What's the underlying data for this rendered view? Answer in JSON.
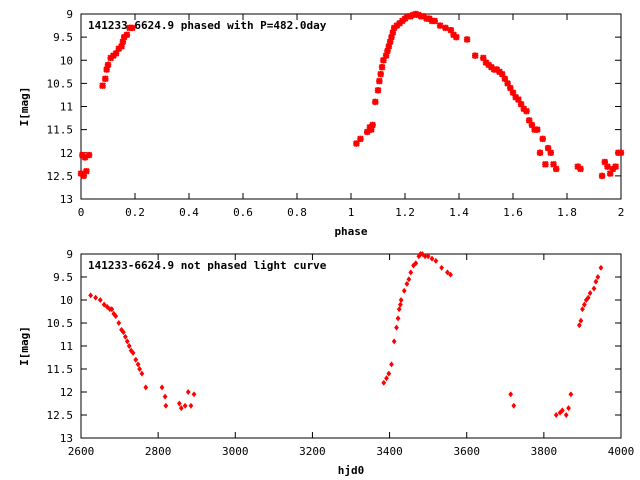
{
  "chart_data": [
    {
      "type": "scatter",
      "title": "141233-6624.9 phased with P=482.0day",
      "xlabel": "phase",
      "ylabel": "I[mag]",
      "xlim": [
        0,
        2
      ],
      "ylim": [
        13,
        9
      ],
      "y_inverted": true,
      "x_ticks": [
        "0",
        "0.2",
        "0.4",
        "0.6",
        "0.8",
        "1",
        "1.2",
        "1.4",
        "1.6",
        "1.8",
        "2"
      ],
      "x_tick_values": [
        0,
        0.2,
        0.4,
        0.6,
        0.8,
        1.0,
        1.2,
        1.4,
        1.6,
        1.8,
        2.0
      ],
      "y_ticks": [
        "9",
        "9.5",
        "10",
        "10.5",
        "11",
        "11.5",
        "12",
        "12.5",
        "13"
      ],
      "y_tick_values": [
        9,
        9.5,
        10,
        10.5,
        11,
        11.5,
        12,
        12.5,
        13
      ],
      "grid": false,
      "marker": "cross",
      "series": [
        {
          "color": "#ff0000",
          "x": [
            0.0,
            0.005,
            0.01,
            0.015,
            0.02,
            0.03,
            0.08,
            0.09,
            0.095,
            0.1,
            0.11,
            0.12,
            0.13,
            0.14,
            0.15,
            0.155,
            0.16,
            0.17,
            0.18,
            0.19,
            1.02,
            1.035,
            1.06,
            1.07,
            1.075,
            1.08,
            1.09,
            1.1,
            1.105,
            1.11,
            1.115,
            1.12,
            1.13,
            1.135,
            1.14,
            1.145,
            1.15,
            1.155,
            1.16,
            1.17,
            1.18,
            1.19,
            1.2,
            1.21,
            1.22,
            1.23,
            1.24,
            1.25,
            1.26,
            1.27,
            1.28,
            1.29,
            1.3,
            1.31,
            1.33,
            1.35,
            1.37,
            1.38,
            1.39,
            1.43,
            1.46,
            1.49,
            1.5,
            1.51,
            1.52,
            1.53,
            1.54,
            1.55,
            1.56,
            1.57,
            1.58,
            1.59,
            1.6,
            1.61,
            1.62,
            1.63,
            1.64,
            1.65,
            1.66,
            1.67,
            1.68,
            1.69,
            1.7,
            1.71,
            1.72,
            1.73,
            1.74,
            1.75,
            1.76,
            1.84,
            1.85,
            1.93,
            1.94,
            1.95,
            1.96,
            1.97,
            1.98,
            1.99,
            2.0
          ],
          "y": [
            12.45,
            12.05,
            12.5,
            12.1,
            12.4,
            12.05,
            10.55,
            10.4,
            10.2,
            10.1,
            9.95,
            9.9,
            9.85,
            9.75,
            9.7,
            9.6,
            9.5,
            9.45,
            9.3,
            9.3,
            11.8,
            11.7,
            11.55,
            11.45,
            11.5,
            11.4,
            10.9,
            10.65,
            10.45,
            10.3,
            10.15,
            10.0,
            9.9,
            9.8,
            9.7,
            9.6,
            9.5,
            9.4,
            9.3,
            9.25,
            9.2,
            9.15,
            9.1,
            9.05,
            9.05,
            9.02,
            9.0,
            9.02,
            9.05,
            9.05,
            9.1,
            9.1,
            9.15,
            9.15,
            9.25,
            9.3,
            9.35,
            9.45,
            9.5,
            9.55,
            9.9,
            9.95,
            10.05,
            10.1,
            10.15,
            10.2,
            10.2,
            10.25,
            10.3,
            10.4,
            10.5,
            10.6,
            10.7,
            10.8,
            10.85,
            10.95,
            11.05,
            11.1,
            11.3,
            11.4,
            11.5,
            11.5,
            12.0,
            11.7,
            12.25,
            11.9,
            12.0,
            12.25,
            12.35,
            12.3,
            12.35,
            12.5,
            12.2,
            12.3,
            12.45,
            12.35,
            12.3,
            12.0,
            12.0
          ]
        }
      ]
    },
    {
      "type": "scatter",
      "title": "141233-6624.9 not phased light curve",
      "xlabel": "hjd0",
      "ylabel": "I[mag]",
      "xlim": [
        2600,
        4000
      ],
      "ylim": [
        13,
        9
      ],
      "y_inverted": true,
      "x_ticks": [
        "2600",
        "2800",
        "3000",
        "3200",
        "3400",
        "3600",
        "3800",
        "4000"
      ],
      "x_tick_values": [
        2600,
        2800,
        3000,
        3200,
        3400,
        3600,
        3800,
        4000
      ],
      "y_ticks": [
        "9",
        "9.5",
        "10",
        "10.5",
        "11",
        "11.5",
        "12",
        "12.5",
        "13"
      ],
      "y_tick_values": [
        9,
        9.5,
        10,
        10.5,
        11,
        11.5,
        12,
        12.5,
        13
      ],
      "grid": false,
      "marker": "diamond",
      "series": [
        {
          "color": "#ff0000",
          "x": [
            2625,
            2638,
            2650,
            2660,
            2668,
            2675,
            2680,
            2685,
            2690,
            2698,
            2705,
            2710,
            2715,
            2720,
            2725,
            2730,
            2735,
            2742,
            2748,
            2752,
            2758,
            2768,
            2810,
            2818,
            2820,
            2855,
            2860,
            2870,
            2878,
            2885,
            2893,
            3385,
            3392,
            3398,
            3405,
            3412,
            3418,
            3422,
            3425,
            3428,
            3430,
            3438,
            3445,
            3450,
            3455,
            3462,
            3468,
            3476,
            3480,
            3485,
            3492,
            3500,
            3510,
            3520,
            3535,
            3550,
            3558,
            3714,
            3722,
            3832,
            3842,
            3848,
            3858,
            3864,
            3870,
            3892,
            3896,
            3900,
            3905,
            3910,
            3915,
            3920,
            3930,
            3935,
            3940,
            3948
          ],
          "y": [
            9.9,
            9.95,
            10.0,
            10.1,
            10.15,
            10.2,
            10.2,
            10.3,
            10.35,
            10.5,
            10.65,
            10.7,
            10.8,
            10.9,
            11.0,
            11.1,
            11.15,
            11.3,
            11.4,
            11.5,
            11.6,
            11.9,
            11.9,
            12.1,
            12.3,
            12.25,
            12.35,
            12.3,
            12.0,
            12.3,
            12.05,
            11.8,
            11.7,
            11.6,
            11.4,
            10.9,
            10.6,
            10.4,
            10.2,
            10.1,
            10.0,
            9.8,
            9.65,
            9.55,
            9.4,
            9.25,
            9.2,
            9.05,
            9.0,
            9.0,
            9.05,
            9.05,
            9.1,
            9.15,
            9.3,
            9.4,
            9.45,
            12.05,
            12.3,
            12.5,
            12.45,
            12.4,
            12.5,
            12.35,
            12.05,
            10.55,
            10.45,
            10.2,
            10.1,
            10.0,
            9.95,
            9.85,
            9.75,
            9.6,
            9.5,
            9.3
          ]
        }
      ]
    }
  ]
}
